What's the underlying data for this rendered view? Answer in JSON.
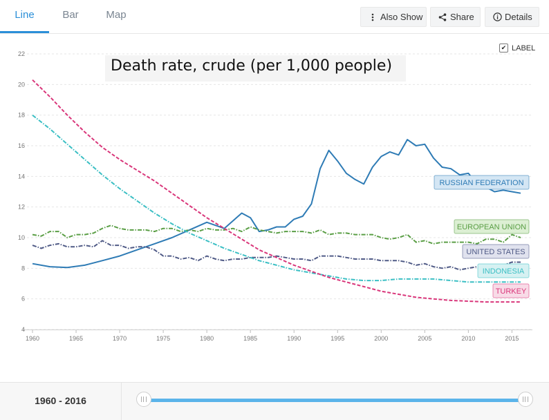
{
  "tabs": [
    {
      "label": "Line",
      "active": true
    },
    {
      "label": "Bar",
      "active": false
    },
    {
      "label": "Map",
      "active": false
    }
  ],
  "toolbar": {
    "also_show_label": "Also Show",
    "share_label": "Share",
    "details_label": "Details"
  },
  "label_toggle": {
    "text": "LABEL",
    "checked": true
  },
  "range": {
    "text": "1960 - 2016",
    "start": 1960,
    "end": 2016
  },
  "chart_data": {
    "type": "line",
    "title": "Death rate, crude (per 1,000 people)",
    "xlim": [
      1960,
      2016
    ],
    "ylim": [
      4,
      22
    ],
    "x_ticks": [
      1960,
      1965,
      1970,
      1975,
      1980,
      1985,
      1990,
      1995,
      2000,
      2005,
      2010,
      2015
    ],
    "y_ticks": [
      4,
      6,
      8,
      10,
      12,
      14,
      16,
      18,
      20,
      22
    ],
    "grid": true,
    "series": [
      {
        "name": "RUSSIAN FEDERATION",
        "color": "#2e7bb5",
        "label_fill": "#d4e6f4",
        "dash": "solid",
        "values": [
          [
            1960,
            8.3
          ],
          [
            1962,
            8.1
          ],
          [
            1964,
            8.05
          ],
          [
            1966,
            8.2
          ],
          [
            1968,
            8.5
          ],
          [
            1970,
            8.8
          ],
          [
            1972,
            9.2
          ],
          [
            1974,
            9.6
          ],
          [
            1976,
            10.0
          ],
          [
            1978,
            10.5
          ],
          [
            1980,
            11.0
          ],
          [
            1982,
            10.6
          ],
          [
            1983,
            11.1
          ],
          [
            1984,
            11.6
          ],
          [
            1985,
            11.3
          ],
          [
            1986,
            10.4
          ],
          [
            1987,
            10.5
          ],
          [
            1988,
            10.7
          ],
          [
            1989,
            10.7
          ],
          [
            1990,
            11.2
          ],
          [
            1991,
            11.4
          ],
          [
            1992,
            12.2
          ],
          [
            1993,
            14.5
          ],
          [
            1994,
            15.7
          ],
          [
            1995,
            15.0
          ],
          [
            1996,
            14.2
          ],
          [
            1997,
            13.8
          ],
          [
            1998,
            13.5
          ],
          [
            1999,
            14.6
          ],
          [
            2000,
            15.3
          ],
          [
            2001,
            15.6
          ],
          [
            2002,
            15.4
          ],
          [
            2003,
            16.4
          ],
          [
            2004,
            16.0
          ],
          [
            2005,
            16.1
          ],
          [
            2006,
            15.2
          ],
          [
            2007,
            14.6
          ],
          [
            2008,
            14.5
          ],
          [
            2009,
            14.1
          ],
          [
            2010,
            14.2
          ],
          [
            2011,
            13.5
          ],
          [
            2012,
            13.3
          ],
          [
            2013,
            13.0
          ],
          [
            2014,
            13.1
          ],
          [
            2015,
            13.0
          ],
          [
            2016,
            12.9
          ]
        ]
      },
      {
        "name": "EUROPEAN UNION",
        "color": "#5a9e45",
        "label_fill": "#dcefd3",
        "dash": "dashdot",
        "values": [
          [
            1960,
            10.2
          ],
          [
            1961,
            10.1
          ],
          [
            1962,
            10.4
          ],
          [
            1963,
            10.4
          ],
          [
            1964,
            10.0
          ],
          [
            1965,
            10.2
          ],
          [
            1966,
            10.2
          ],
          [
            1967,
            10.3
          ],
          [
            1968,
            10.6
          ],
          [
            1969,
            10.8
          ],
          [
            1970,
            10.6
          ],
          [
            1971,
            10.5
          ],
          [
            1972,
            10.5
          ],
          [
            1973,
            10.5
          ],
          [
            1974,
            10.4
          ],
          [
            1975,
            10.6
          ],
          [
            1976,
            10.6
          ],
          [
            1977,
            10.4
          ],
          [
            1978,
            10.5
          ],
          [
            1979,
            10.4
          ],
          [
            1980,
            10.6
          ],
          [
            1981,
            10.5
          ],
          [
            1982,
            10.5
          ],
          [
            1983,
            10.6
          ],
          [
            1984,
            10.4
          ],
          [
            1985,
            10.7
          ],
          [
            1986,
            10.5
          ],
          [
            1987,
            10.4
          ],
          [
            1988,
            10.3
          ],
          [
            1989,
            10.4
          ],
          [
            1990,
            10.4
          ],
          [
            1991,
            10.4
          ],
          [
            1992,
            10.3
          ],
          [
            1993,
            10.5
          ],
          [
            1994,
            10.2
          ],
          [
            1995,
            10.3
          ],
          [
            1996,
            10.3
          ],
          [
            1997,
            10.2
          ],
          [
            1998,
            10.2
          ],
          [
            1999,
            10.2
          ],
          [
            2000,
            10.0
          ],
          [
            2001,
            9.9
          ],
          [
            2002,
            10.0
          ],
          [
            2003,
            10.2
          ],
          [
            2004,
            9.7
          ],
          [
            2005,
            9.8
          ],
          [
            2006,
            9.6
          ],
          [
            2007,
            9.7
          ],
          [
            2008,
            9.7
          ],
          [
            2009,
            9.7
          ],
          [
            2010,
            9.7
          ],
          [
            2011,
            9.6
          ],
          [
            2012,
            9.9
          ],
          [
            2013,
            9.9
          ],
          [
            2014,
            9.7
          ],
          [
            2015,
            10.2
          ],
          [
            2016,
            10.0
          ]
        ]
      },
      {
        "name": "UNITED STATES",
        "color": "#4f5a86",
        "label_fill": "#e0e2ee",
        "dash": "dashdot",
        "values": [
          [
            1960,
            9.5
          ],
          [
            1961,
            9.3
          ],
          [
            1962,
            9.5
          ],
          [
            1963,
            9.6
          ],
          [
            1964,
            9.4
          ],
          [
            1965,
            9.4
          ],
          [
            1966,
            9.5
          ],
          [
            1967,
            9.4
          ],
          [
            1968,
            9.8
          ],
          [
            1969,
            9.5
          ],
          [
            1970,
            9.5
          ],
          [
            1971,
            9.3
          ],
          [
            1972,
            9.4
          ],
          [
            1973,
            9.4
          ],
          [
            1974,
            9.2
          ],
          [
            1975,
            8.8
          ],
          [
            1976,
            8.8
          ],
          [
            1977,
            8.6
          ],
          [
            1978,
            8.7
          ],
          [
            1979,
            8.5
          ],
          [
            1980,
            8.8
          ],
          [
            1981,
            8.6
          ],
          [
            1982,
            8.5
          ],
          [
            1983,
            8.6
          ],
          [
            1984,
            8.6
          ],
          [
            1985,
            8.7
          ],
          [
            1986,
            8.7
          ],
          [
            1987,
            8.7
          ],
          [
            1988,
            8.8
          ],
          [
            1989,
            8.7
          ],
          [
            1990,
            8.6
          ],
          [
            1991,
            8.6
          ],
          [
            1992,
            8.5
          ],
          [
            1993,
            8.8
          ],
          [
            1994,
            8.8
          ],
          [
            1995,
            8.8
          ],
          [
            1996,
            8.7
          ],
          [
            1997,
            8.6
          ],
          [
            1998,
            8.6
          ],
          [
            1999,
            8.6
          ],
          [
            2000,
            8.5
          ],
          [
            2001,
            8.5
          ],
          [
            2002,
            8.5
          ],
          [
            2003,
            8.4
          ],
          [
            2004,
            8.2
          ],
          [
            2005,
            8.3
          ],
          [
            2006,
            8.1
          ],
          [
            2007,
            8.0
          ],
          [
            2008,
            8.1
          ],
          [
            2009,
            7.9
          ],
          [
            2010,
            8.0
          ],
          [
            2011,
            8.1
          ],
          [
            2012,
            8.1
          ],
          [
            2013,
            8.2
          ],
          [
            2014,
            8.2
          ],
          [
            2015,
            8.4
          ],
          [
            2016,
            8.4
          ]
        ]
      },
      {
        "name": "INDONESIA",
        "color": "#3bbfc4",
        "label_fill": "#d6f1f2",
        "dash": "dashdot",
        "values": [
          [
            1960,
            18.0
          ],
          [
            1962,
            17.1
          ],
          [
            1964,
            16.1
          ],
          [
            1966,
            15.1
          ],
          [
            1968,
            14.1
          ],
          [
            1970,
            13.2
          ],
          [
            1972,
            12.4
          ],
          [
            1974,
            11.6
          ],
          [
            1976,
            10.9
          ],
          [
            1978,
            10.3
          ],
          [
            1980,
            9.8
          ],
          [
            1982,
            9.3
          ],
          [
            1984,
            8.9
          ],
          [
            1986,
            8.5
          ],
          [
            1988,
            8.2
          ],
          [
            1990,
            7.9
          ],
          [
            1992,
            7.7
          ],
          [
            1994,
            7.5
          ],
          [
            1996,
            7.3
          ],
          [
            1998,
            7.2
          ],
          [
            2000,
            7.2
          ],
          [
            2002,
            7.3
          ],
          [
            2004,
            7.3
          ],
          [
            2006,
            7.3
          ],
          [
            2008,
            7.2
          ],
          [
            2010,
            7.1
          ],
          [
            2012,
            7.1
          ],
          [
            2014,
            7.1
          ],
          [
            2016,
            7.1
          ]
        ]
      },
      {
        "name": "TURKEY",
        "color": "#d9367a",
        "label_fill": "#f8dbe7",
        "dash": "dashed",
        "values": [
          [
            1960,
            20.3
          ],
          [
            1962,
            19.2
          ],
          [
            1964,
            18.0
          ],
          [
            1966,
            16.9
          ],
          [
            1968,
            15.9
          ],
          [
            1970,
            15.1
          ],
          [
            1972,
            14.4
          ],
          [
            1974,
            13.7
          ],
          [
            1976,
            12.9
          ],
          [
            1978,
            12.1
          ],
          [
            1980,
            11.3
          ],
          [
            1982,
            10.6
          ],
          [
            1984,
            9.9
          ],
          [
            1986,
            9.2
          ],
          [
            1988,
            8.7
          ],
          [
            1990,
            8.2
          ],
          [
            1992,
            7.8
          ],
          [
            1994,
            7.4
          ],
          [
            1996,
            7.1
          ],
          [
            1998,
            6.8
          ],
          [
            2000,
            6.5
          ],
          [
            2002,
            6.3
          ],
          [
            2004,
            6.1
          ],
          [
            2006,
            6.0
          ],
          [
            2008,
            5.9
          ],
          [
            2010,
            5.85
          ],
          [
            2012,
            5.8
          ],
          [
            2014,
            5.8
          ],
          [
            2016,
            5.8
          ]
        ]
      }
    ]
  }
}
